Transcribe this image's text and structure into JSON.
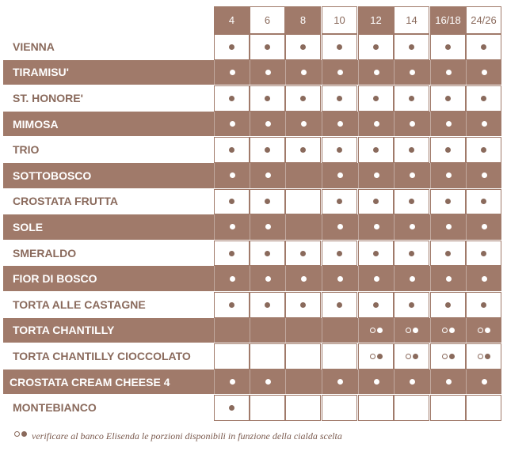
{
  "sizes": [
    "4",
    "6",
    "8",
    "10",
    "12",
    "14",
    "16/18",
    "24/26"
  ],
  "header_dark": [
    true,
    false,
    true,
    false,
    true,
    false,
    true,
    false
  ],
  "rows": [
    {
      "name": "VIENNA",
      "cells": [
        "dot",
        "dot",
        "dot",
        "dot",
        "dot",
        "dot",
        "dot",
        "dot"
      ]
    },
    {
      "name": "TIRAMISU'",
      "cells": [
        "dot",
        "dot",
        "dot",
        "dot",
        "dot",
        "dot",
        "dot",
        "dot"
      ]
    },
    {
      "name": "ST. HONORE'",
      "cells": [
        "dot",
        "dot",
        "dot",
        "dot",
        "dot",
        "dot",
        "dot",
        "dot"
      ]
    },
    {
      "name": "MIMOSA",
      "cells": [
        "dot",
        "dot",
        "dot",
        "dot",
        "dot",
        "dot",
        "dot",
        "dot"
      ]
    },
    {
      "name": "TRIO",
      "cells": [
        "dot",
        "dot",
        "dot",
        "dot",
        "dot",
        "dot",
        "dot",
        "dot"
      ]
    },
    {
      "name": "SOTTOBOSCO",
      "cells": [
        "dot",
        "dot",
        "",
        "dot",
        "dot",
        "dot",
        "dot",
        "dot"
      ]
    },
    {
      "name": "CROSTATA FRUTTA",
      "cells": [
        "dot",
        "dot",
        "",
        "dot",
        "dot",
        "dot",
        "dot",
        "dot"
      ]
    },
    {
      "name": "SOLE",
      "cells": [
        "dot",
        "dot",
        "",
        "dot",
        "dot",
        "dot",
        "dot",
        "dot"
      ]
    },
    {
      "name": "SMERALDO",
      "cells": [
        "dot",
        "dot",
        "dot",
        "dot",
        "dot",
        "dot",
        "dot",
        "dot"
      ]
    },
    {
      "name": "FIOR DI BOSCO",
      "cells": [
        "dot",
        "dot",
        "dot",
        "dot",
        "dot",
        "dot",
        "dot",
        "dot"
      ]
    },
    {
      "name": "TORTA ALLE CASTAGNE",
      "cells": [
        "dot",
        "dot",
        "dot",
        "dot",
        "dot",
        "dot",
        "dot",
        "dot"
      ]
    },
    {
      "name": "TORTA CHANTILLY",
      "cells": [
        "",
        "",
        "",
        "",
        "pair",
        "pair",
        "pair",
        "pair"
      ]
    },
    {
      "name": "TORTA CHANTILLY CIOCCOLATO",
      "cells": [
        "",
        "",
        "",
        "",
        "pair",
        "pair",
        "pair",
        "pair"
      ]
    },
    {
      "name": "CROSTATA CREAM CHEESE 4",
      "cells": [
        "dot",
        "dot",
        "",
        "dot",
        "dot",
        "dot",
        "dot",
        "dot"
      ]
    },
    {
      "name": "MONTEBIANCO",
      "cells": [
        "dot",
        "",
        "",
        "",
        "",
        "",
        "",
        ""
      ]
    }
  ],
  "legend": {
    "text": "verificare al banco Elisenda le porzioni disponibili in funzione della cialda scelta"
  },
  "colors": {
    "brown": "#a07a6a",
    "dot_on_white": "#8a6a5c",
    "white": "#ffffff",
    "name_on_white": "#8a6a5c"
  }
}
